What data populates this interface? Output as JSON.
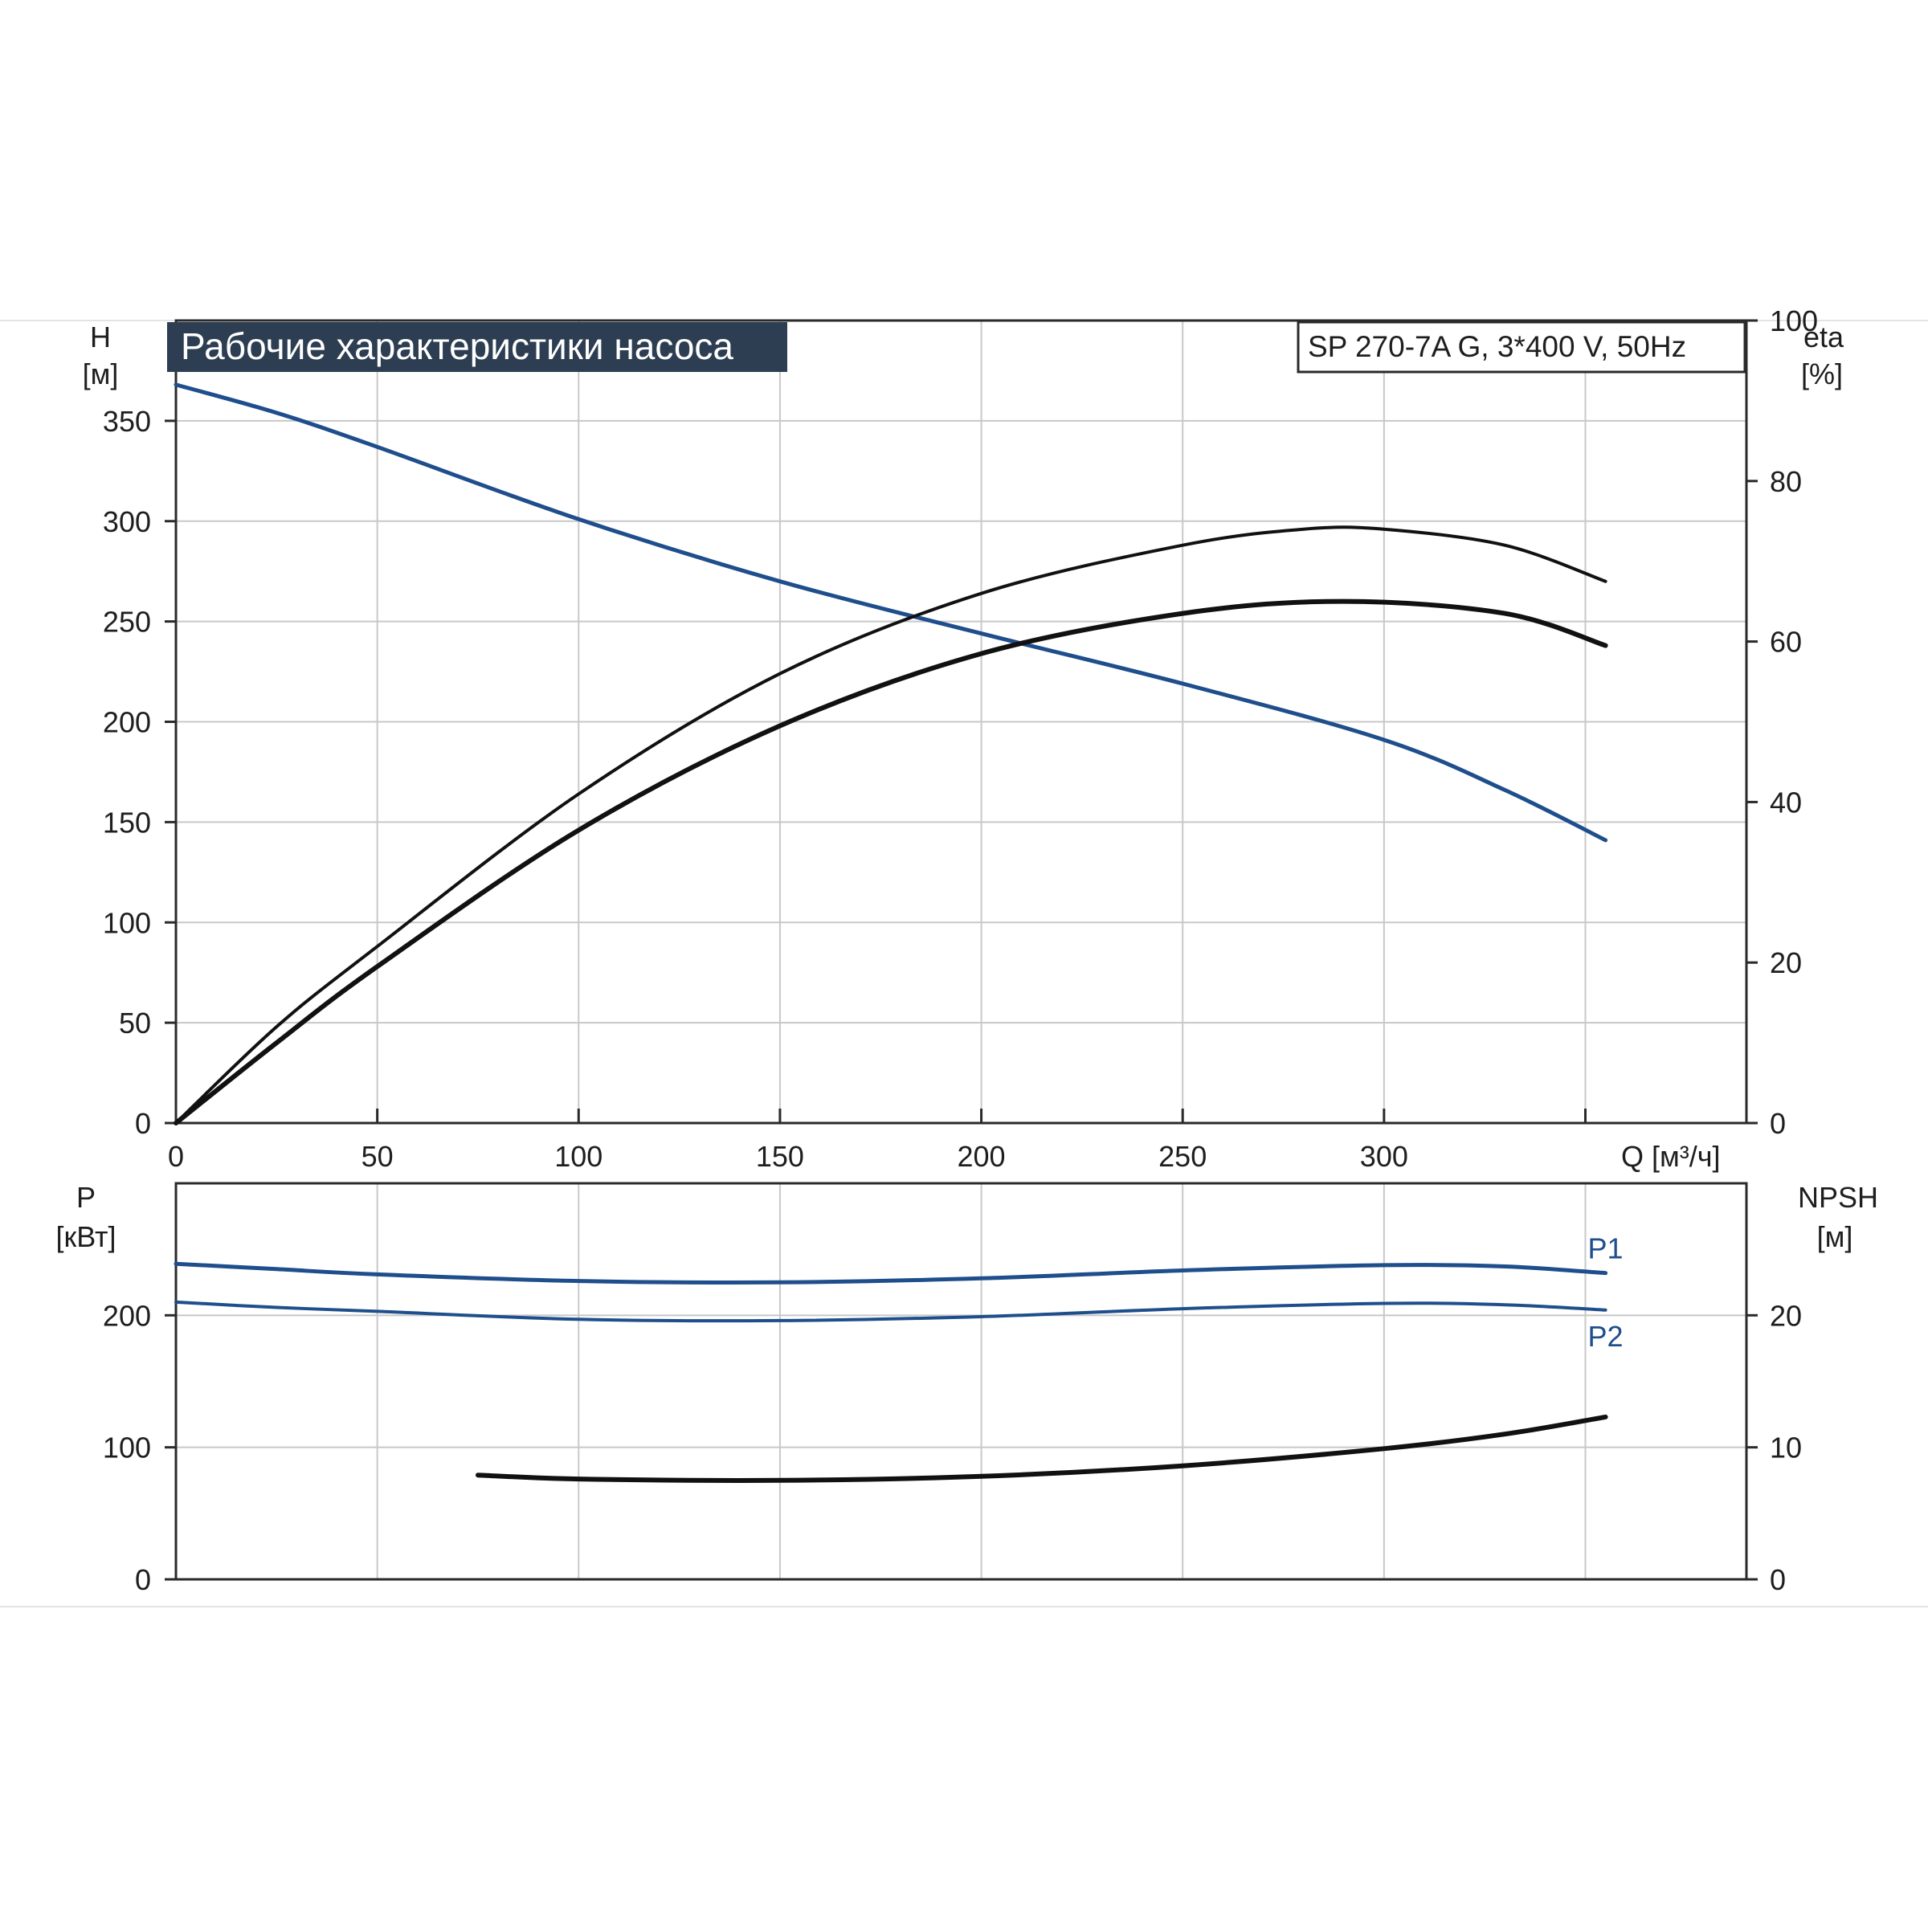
{
  "chart_data": [
    {
      "type": "line",
      "title": "Рабочие характеристики насоса",
      "model": "SP 270-7A G, 3*400 V, 50Hz",
      "y_left_label": "H",
      "y_left_unit": "[м]",
      "y_right_label": "eta",
      "y_right_unit": "[%]",
      "x_label": "Q [м³/ч]",
      "xlim": [
        0,
        390
      ],
      "ylim_left": [
        0,
        400
      ],
      "ylim_right": [
        0,
        100
      ],
      "x_ticks": [
        0,
        50,
        100,
        150,
        200,
        250,
        300
      ],
      "y_left_ticks": [
        0,
        50,
        100,
        150,
        200,
        250,
        300,
        350
      ],
      "y_right_ticks": [
        0,
        20,
        40,
        60,
        80,
        100
      ],
      "grid": true,
      "series": [
        {
          "axis": "left",
          "color": "#1f4e8c",
          "x": [
            0,
            25,
            50,
            100,
            150,
            200,
            250,
            300,
            330,
            355
          ],
          "y": [
            368,
            354,
            337,
            301,
            270,
            244,
            219,
            191,
            166,
            141
          ]
        },
        {
          "axis": "right",
          "color": "#111111",
          "x": [
            0,
            25,
            50,
            100,
            150,
            200,
            250,
            280,
            300,
            330,
            355
          ],
          "y": [
            0,
            12,
            22,
            41,
            56,
            66,
            72,
            74,
            74,
            72,
            67.5
          ]
        },
        {
          "axis": "right",
          "color": "#111111",
          "x": [
            0,
            25,
            50,
            100,
            150,
            200,
            250,
            290,
            330,
            355
          ],
          "y": [
            0,
            10,
            19.5,
            36.5,
            49.5,
            58.5,
            63.5,
            65,
            63.5,
            59.5
          ]
        }
      ]
    },
    {
      "type": "line",
      "y_left_label": "P",
      "y_left_unit": "[кВт]",
      "y_right_label": "NPSH",
      "y_right_unit": "[м]",
      "xlim": [
        0,
        390
      ],
      "ylim_left": [
        0,
        300
      ],
      "ylim_right": [
        0,
        30
      ],
      "y_left_ticks": [
        0,
        100,
        200
      ],
      "y_right_ticks": [
        0,
        10,
        20
      ],
      "grid": true,
      "series": [
        {
          "name": "P1",
          "axis": "left",
          "color": "#1f4e8c",
          "x": [
            0,
            25,
            50,
            100,
            150,
            200,
            250,
            300,
            330,
            355
          ],
          "y": [
            239,
            235,
            231,
            226,
            225,
            228,
            234,
            238,
            237,
            232
          ]
        },
        {
          "name": "P2",
          "axis": "left",
          "color": "#1f4e8c",
          "x": [
            0,
            25,
            50,
            100,
            150,
            200,
            250,
            300,
            330,
            355
          ],
          "y": [
            210,
            206,
            203,
            197,
            196,
            199,
            205,
            209,
            208,
            204
          ]
        },
        {
          "axis": "right",
          "color": "#111111",
          "x": [
            75,
            100,
            150,
            200,
            250,
            300,
            330,
            355
          ],
          "y": [
            7.9,
            7.6,
            7.5,
            7.8,
            8.6,
            9.9,
            11.0,
            12.3
          ]
        }
      ]
    }
  ]
}
